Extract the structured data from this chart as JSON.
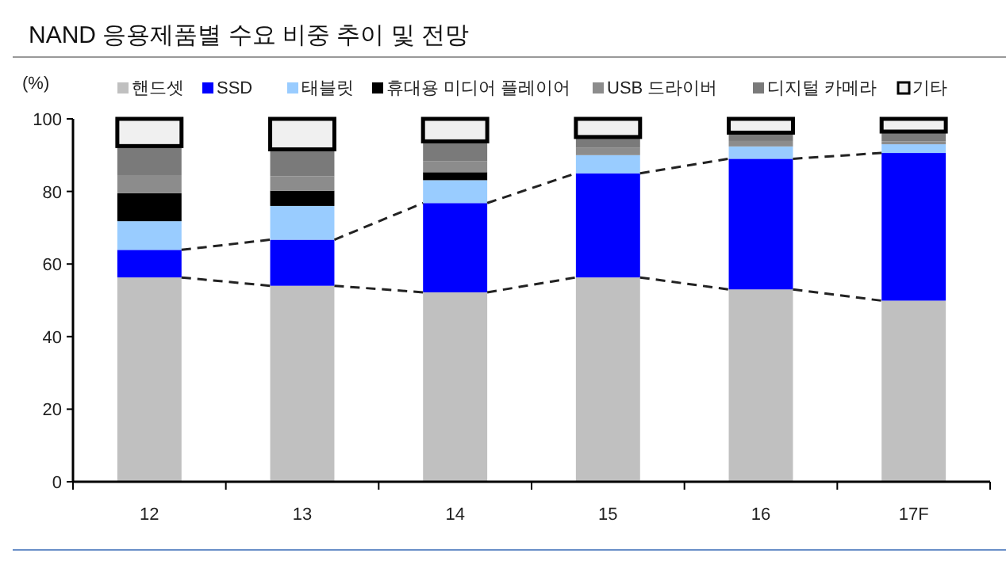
{
  "chart_data": {
    "type": "bar",
    "title": "NAND 응용제품별 수요 비중 추이 및 전망",
    "ylabel": "(%)",
    "stacked": true,
    "categories": [
      "12",
      "13",
      "14",
      "15",
      "16",
      "17F"
    ],
    "series": [
      {
        "name": "핸드셋",
        "color": "#c0c0c0",
        "values": [
          56.3,
          54,
          52.2,
          56.3,
          53,
          49.9
        ]
      },
      {
        "name": "SSD",
        "color": "#0000ff",
        "values": [
          7.6,
          12.7,
          24.6,
          28.7,
          36,
          40.7
        ]
      },
      {
        "name": "태블릿",
        "color": "#99ccff",
        "values": [
          7.9,
          9.3,
          6.3,
          5,
          3.4,
          2.4
        ]
      },
      {
        "name": "휴대용 미디어 플레이어",
        "color": "#000000",
        "values": [
          7.7,
          4.2,
          2.2,
          0,
          0,
          0
        ]
      },
      {
        "name": "USB 드라이버",
        "color": "#8c8c8c",
        "values": [
          5,
          4,
          3,
          2,
          1.5,
          0.8
        ]
      },
      {
        "name": "디지털 카메라",
        "color": "#7a7a7a",
        "values": [
          8,
          7.4,
          5.5,
          3,
          2.3,
          2.7
        ]
      },
      {
        "name": "기타",
        "color": "#f0f0f0",
        "values": [
          7.5,
          8.4,
          6.2,
          5,
          3.8,
          3.5
        ]
      }
    ],
    "ylim": [
      0,
      100
    ],
    "yticks": [
      0,
      20,
      40,
      60,
      80,
      100
    ],
    "grid": false,
    "legend": "top"
  }
}
